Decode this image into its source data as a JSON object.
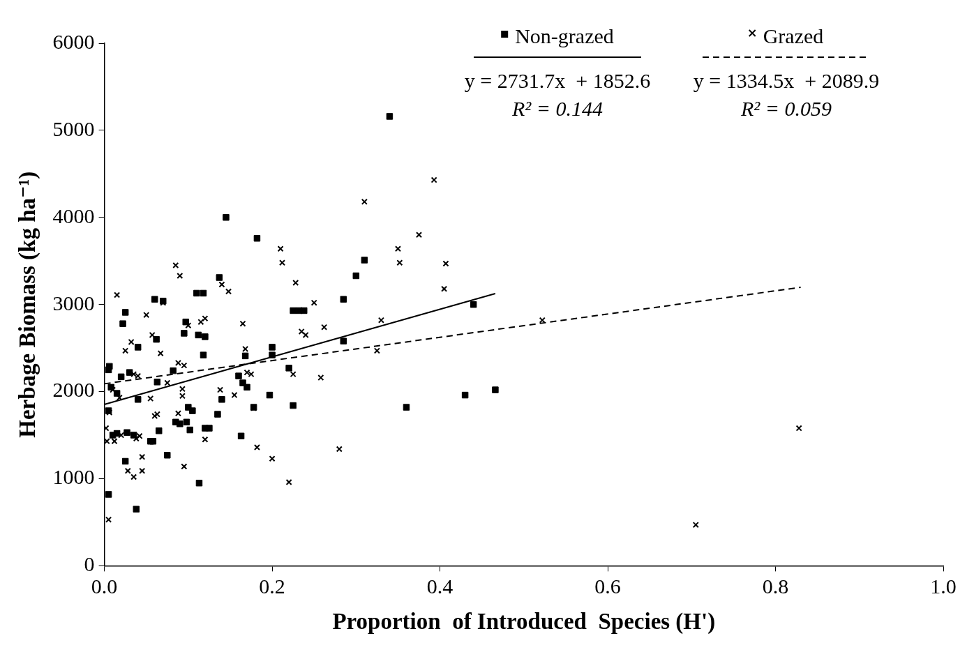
{
  "chart_data": {
    "type": "scatter",
    "x_label": "Proportion  of Introduced  Species (H')",
    "y_label": "Herbage Biomass (kg ha⁻¹)",
    "xlim": [
      0,
      1
    ],
    "xticks": [
      {
        "value": 0,
        "label": "0.0"
      },
      0.2,
      0.4,
      0.6,
      0.8,
      {
        "value": 1,
        "label": "1.0"
      }
    ],
    "ylim": [
      0,
      6000
    ],
    "yticks": [
      0,
      1000,
      2000,
      3000,
      4000,
      5000,
      6000
    ],
    "grid": false,
    "legend": "top-right",
    "series": [
      {
        "name": "Non-grazed",
        "color": "#000000",
        "marker": "square",
        "line_style": "solid",
        "equation": "y = 2731.7x  + 1852.6",
        "r_squared": "R² = 0.144",
        "fit": {
          "x": [
            0,
            0.466
          ],
          "y": [
            1852.6,
            3125.6
          ]
        },
        "x": [
          0.005,
          0.005,
          0.006,
          0.005,
          0.008,
          0.01,
          0.015,
          0.015,
          0.02,
          0.022,
          0.025,
          0.025,
          0.027,
          0.03,
          0.035,
          0.038,
          0.04,
          0.04,
          0.055,
          0.058,
          0.06,
          0.062,
          0.063,
          0.065,
          0.07,
          0.075,
          0.082,
          0.085,
          0.09,
          0.095,
          0.097,
          0.098,
          0.1,
          0.102,
          0.105,
          0.11,
          0.112,
          0.113,
          0.118,
          0.118,
          0.12,
          0.12,
          0.125,
          0.135,
          0.137,
          0.14,
          0.145,
          0.16,
          0.163,
          0.165,
          0.168,
          0.17,
          0.178,
          0.182,
          0.197,
          0.2,
          0.2,
          0.22,
          0.225,
          0.225,
          0.232,
          0.238,
          0.285,
          0.285,
          0.3,
          0.31,
          0.34,
          0.36,
          0.43,
          0.44,
          0.466
        ],
        "values": [
          820,
          2250,
          2290,
          1780,
          2050,
          1500,
          1520,
          1980,
          2170,
          2780,
          2910,
          1200,
          1530,
          2220,
          1500,
          650,
          1910,
          2510,
          1430,
          1430,
          3060,
          2600,
          2110,
          1550,
          3040,
          1270,
          2240,
          1650,
          1630,
          2670,
          2800,
          1650,
          1820,
          1560,
          1780,
          3130,
          2650,
          950,
          3130,
          2420,
          2630,
          1580,
          1580,
          1740,
          3310,
          1910,
          4000,
          2180,
          1490,
          2100,
          2410,
          2050,
          1820,
          3760,
          1960,
          2510,
          2420,
          2270,
          1840,
          2930,
          2930,
          2930,
          3060,
          2580,
          3330,
          3510,
          5160,
          1820,
          1960,
          3000,
          2020
        ]
      },
      {
        "name": "Grazed",
        "color": "#000000",
        "marker": "cross",
        "line_style": "dashed",
        "equation": "y = 1334.5x  + 2089.9",
        "r_squared": "R² = 0.059",
        "fit": {
          "x": [
            0,
            0.83
          ],
          "y": [
            2089.9,
            3197.5
          ]
        },
        "x": [
          0.002,
          0.003,
          0.005,
          0.006,
          0.01,
          0.012,
          0.015,
          0.018,
          0.02,
          0.025,
          0.028,
          0.032,
          0.035,
          0.035,
          0.038,
          0.04,
          0.042,
          0.045,
          0.045,
          0.05,
          0.055,
          0.057,
          0.06,
          0.063,
          0.067,
          0.07,
          0.075,
          0.085,
          0.088,
          0.088,
          0.09,
          0.093,
          0.093,
          0.095,
          0.095,
          0.1,
          0.115,
          0.12,
          0.12,
          0.138,
          0.14,
          0.148,
          0.155,
          0.165,
          0.168,
          0.17,
          0.175,
          0.178,
          0.182,
          0.2,
          0.2,
          0.21,
          0.212,
          0.22,
          0.225,
          0.228,
          0.235,
          0.24,
          0.25,
          0.258,
          0.262,
          0.28,
          0.31,
          0.325,
          0.33,
          0.35,
          0.352,
          0.375,
          0.393,
          0.405,
          0.407,
          0.522,
          0.705,
          0.828
        ],
        "values": [
          1580,
          1430,
          530,
          1760,
          2020,
          1430,
          3110,
          1930,
          1500,
          2470,
          1090,
          2570,
          1020,
          2200,
          1460,
          2180,
          1490,
          1090,
          1250,
          2880,
          1920,
          2650,
          1720,
          1740,
          2440,
          3020,
          2100,
          3450,
          2330,
          1750,
          3330,
          1950,
          2030,
          2300,
          1140,
          2760,
          2800,
          2840,
          1450,
          2020,
          3230,
          3150,
          1960,
          2780,
          2490,
          2220,
          2200,
          1810,
          1360,
          1230,
          2420,
          3640,
          3480,
          960,
          2200,
          3250,
          2690,
          2650,
          3020,
          2160,
          2740,
          1340,
          4180,
          2470,
          2820,
          3640,
          3480,
          3800,
          4430,
          3180,
          3470,
          2820,
          470,
          1580
        ]
      }
    ]
  }
}
